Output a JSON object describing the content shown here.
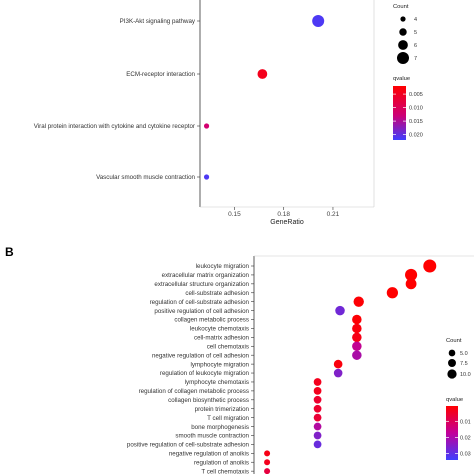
{
  "chart_data": [
    {
      "type": "scatter",
      "xlabel": "GeneRatio",
      "xticks": [
        0.15,
        0.18,
        0.21
      ],
      "xlim": [
        0.129,
        0.235
      ],
      "categories": [
        "PI3K-Akt signaling pathway",
        "ECM-receptor interaction",
        "Viral protein interaction with cytokine and cytokine receptor",
        "Vascular smooth muscle contraction"
      ],
      "points": [
        {
          "term": "PI3K-Akt signaling pathway",
          "generatio": 0.201,
          "count": 7,
          "qvalue": 0.021
        },
        {
          "term": "ECM-receptor interaction",
          "generatio": 0.167,
          "count": 6,
          "qvalue": 0.004
        },
        {
          "term": "Viral protein interaction with cytokine and cytokine receptor",
          "generatio": 0.133,
          "count": 4,
          "qvalue": 0.01
        },
        {
          "term": "Vascular smooth muscle contraction",
          "generatio": 0.133,
          "count": 4,
          "qvalue": 0.021
        }
      ],
      "size_legend": {
        "title": "Count",
        "values": [
          4,
          5,
          6,
          7
        ]
      },
      "color_legend": {
        "title": "qvalue",
        "ticks": [
          0.005,
          0.01,
          0.015,
          0.02
        ],
        "tick_labels": [
          "0.005",
          "0.010",
          "0.015",
          "0.020"
        ],
        "range": [
          0.002,
          0.022
        ],
        "colors": [
          "#ff0000",
          "#0000ff"
        ]
      }
    },
    {
      "type": "scatter",
      "panel_label": "B",
      "xlim": [
        0.005,
        0.055
      ],
      "categories": [
        "leukocyte migration",
        "extracellular matrix organization",
        "extracellular structure organization",
        "cell-substrate adhesion",
        "regulation of cell-substrate adhesion",
        "positive regulation of cell adhesion",
        "collagen metabolic process",
        "leukocyte chemotaxis",
        "cell-matrix adhesion",
        "cell chemotaxis",
        "negative regulation of cell adhesion",
        "lymphocyte migration",
        "regulation of leukocyte migration",
        "lymphocyte chemotaxis",
        "regulation of collagen metabolic process",
        "collagen biosynthetic process",
        "protein trimerization",
        "T cell migration",
        "bone morphogenesis",
        "smooth muscle contraction",
        "positive regulation of cell-substrate adhesion",
        "negative regulation of anoikis",
        "regulation of anoikis",
        "T cell chemotaxis"
      ],
      "points": [
        {
          "term": "leukocyte migration",
          "generatio": 0.052,
          "count": 11,
          "qvalue": 0.0005
        },
        {
          "term": "extracellular matrix organization",
          "generatio": 0.047,
          "count": 10,
          "qvalue": 0.0005
        },
        {
          "term": "extracellular structure organization",
          "generatio": 0.047,
          "count": 8.5,
          "qvalue": 0.0005
        },
        {
          "term": "cell-substrate adhesion",
          "generatio": 0.042,
          "count": 9,
          "qvalue": 0.0005
        },
        {
          "term": "regulation of cell-substrate adhesion",
          "generatio": 0.033,
          "count": 8,
          "qvalue": 0.001
        },
        {
          "term": "positive regulation of cell adhesion",
          "generatio": 0.028,
          "count": 7,
          "qvalue": 0.028
        },
        {
          "term": "collagen metabolic process",
          "generatio": 0.0325,
          "count": 7,
          "qvalue": 0.001
        },
        {
          "term": "leukocyte chemotaxis",
          "generatio": 0.0325,
          "count": 7,
          "qvalue": 0.002
        },
        {
          "term": "cell-matrix adhesion",
          "generatio": 0.0325,
          "count": 7,
          "qvalue": 0.003
        },
        {
          "term": "cell chemotaxis",
          "generatio": 0.0325,
          "count": 7,
          "qvalue": 0.018
        },
        {
          "term": "negative regulation of cell adhesion",
          "generatio": 0.0325,
          "count": 7,
          "qvalue": 0.021
        },
        {
          "term": "lymphocyte migration",
          "generatio": 0.0275,
          "count": 6,
          "qvalue": 0.002
        },
        {
          "term": "regulation of leukocyte migration",
          "generatio": 0.0275,
          "count": 6,
          "qvalue": 0.026
        },
        {
          "term": "lymphocyte chemotaxis",
          "generatio": 0.022,
          "count": 5,
          "qvalue": 0.004
        },
        {
          "term": "regulation of collagen metabolic process",
          "generatio": 0.022,
          "count": 5,
          "qvalue": 0.004
        },
        {
          "term": "collagen biosynthetic process",
          "generatio": 0.022,
          "count": 5,
          "qvalue": 0.006
        },
        {
          "term": "protein trimerization",
          "generatio": 0.022,
          "count": 5,
          "qvalue": 0.006
        },
        {
          "term": "T cell migration",
          "generatio": 0.022,
          "count": 5,
          "qvalue": 0.007
        },
        {
          "term": "bone morphogenesis",
          "generatio": 0.022,
          "count": 5,
          "qvalue": 0.02
        },
        {
          "term": "smooth muscle contraction",
          "generatio": 0.022,
          "count": 5,
          "qvalue": 0.026
        },
        {
          "term": "positive regulation of cell-substrate adhesion",
          "generatio": 0.022,
          "count": 5,
          "qvalue": 0.029
        },
        {
          "term": "negative regulation of anoikis",
          "generatio": 0.0085,
          "count": 3,
          "qvalue": 0.003
        },
        {
          "term": "regulation of anoikis",
          "generatio": 0.0085,
          "count": 3,
          "qvalue": 0.004
        },
        {
          "term": "T cell chemotaxis",
          "generatio": 0.0085,
          "count": 3,
          "qvalue": 0.008
        }
      ],
      "size_legend": {
        "title": "Count",
        "values": [
          5,
          7.5,
          10
        ],
        "tick_labels": [
          "5.0",
          "7.5",
          "10.0"
        ]
      },
      "color_legend": {
        "title": "qvalue",
        "ticks": [
          0.01,
          0.02,
          0.03
        ],
        "tick_labels": [
          "0.01",
          "0.02",
          "0.03"
        ],
        "range": [
          0.0005,
          0.034
        ],
        "colors": [
          "#ff0000",
          "#0000ff"
        ]
      }
    }
  ]
}
